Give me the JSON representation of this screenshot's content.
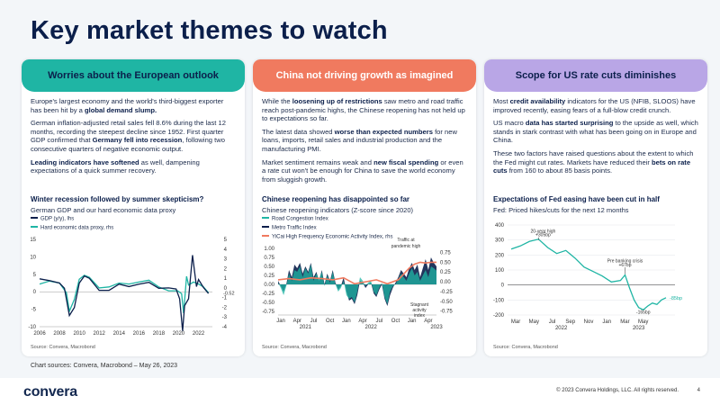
{
  "page_title": "Key market themes to watch",
  "colors": {
    "teal": "#1fb5a4",
    "coral": "#f07a5f",
    "lavender": "#b9a6e6",
    "navy": "#0b1f4b"
  },
  "cards": [
    {
      "header": "Worries about the European outlook",
      "paras": [
        [
          {
            "t": "Europe's largest economy and the world's third-biggest exporter has been hit by a "
          },
          {
            "t": "global demand slump.",
            "b": true
          }
        ],
        [
          {
            "t": "German inflation-adjusted retail sales fell 8.6% during the last 12 months, recording the steepest decline since 1952. First quarter GDP confirmed that "
          },
          {
            "t": "Germany fell into recession",
            "b": true
          },
          {
            "t": ", following two consecutive quarters of negative economic output."
          }
        ],
        [
          {
            "t": "Leading indicators have softened",
            "b": true
          },
          {
            "t": " as well, dampening expectations of a quick summer recovery."
          }
        ]
      ],
      "chart_title": "Winter recession followed by summer skepticism?",
      "chart_subtitle": "German GDP and our hard economic data proxy",
      "source": "Source: Convera, Macrobond"
    },
    {
      "header": "China not driving growth as imagined",
      "paras": [
        [
          {
            "t": "While the "
          },
          {
            "t": "loosening up of restrictions",
            "b": true
          },
          {
            "t": " saw metro and road traffic reach post-pandemic highs, the Chinese reopening has not held up to expectations so far."
          }
        ],
        [
          {
            "t": "The latest data showed "
          },
          {
            "t": "worse than expected numbers",
            "b": true
          },
          {
            "t": " for new loans, imports, retail sales and industrial production and the manufacturing PMI."
          }
        ],
        [
          {
            "t": "Market sentiment remains weak and "
          },
          {
            "t": "new fiscal spending",
            "b": true
          },
          {
            "t": " or even a rate cut won't be enough for China to save the world economy from sluggish growth."
          }
        ]
      ],
      "chart_title": "Chinese reopening has disappointed so far",
      "chart_subtitle": "Chinese reopening indicators (Z-score since 2020)",
      "source": "Source: Convera, Macrobond"
    },
    {
      "header": "Scope for US rate cuts diminishes",
      "paras": [
        [
          {
            "t": "Most "
          },
          {
            "t": "credit availability",
            "b": true
          },
          {
            "t": " indicators for the US (NFIB, SLOOS) have improved recently, easing fears of a full-blow credit crunch."
          }
        ],
        [
          {
            "t": "US macro "
          },
          {
            "t": "data has started surprising",
            "b": true
          },
          {
            "t": " to the upside as well, which stands in stark contrast with what has been going on in Europe and China."
          }
        ],
        [
          {
            "t": "These two factors have raised questions about the extent to which the Fed might cut rates. Markets have reduced their "
          },
          {
            "t": "bets on rate cuts",
            "b": true
          },
          {
            "t": " from 160 to about 85 basis points."
          }
        ]
      ],
      "chart_title": "Expectations of Fed easing have been cut in half",
      "chart_subtitle": "Fed: Priced hikes/cuts for the next 12 months",
      "source": "Source: Convera, Macrobond"
    }
  ],
  "footer": {
    "sources": "Chart sources: Convera, Macrobond – May 26, 2023",
    "logo": "convera",
    "copyright": "© 2023 Convera Holdings, LLC. All rights reserved.",
    "page": "4"
  },
  "chart_data": [
    {
      "type": "line",
      "title": "Winter recession followed by summer skepticism?",
      "subtitle": "German GDP and our hard economic data proxy",
      "legend": [
        "GDP (y/y), lhs",
        "Hard economic data proxy, rhs"
      ],
      "x_ticks": [
        "2006",
        "2008",
        "2010",
        "2012",
        "2014",
        "2016",
        "2018",
        "2020",
        "2022"
      ],
      "y_left": {
        "ticks": [
          15,
          10,
          5,
          0,
          -5,
          -10
        ],
        "ylim": [
          -10,
          15
        ]
      },
      "y_right": {
        "ticks": [
          5,
          4,
          3,
          2,
          1,
          0,
          -1,
          -2,
          -3,
          -4
        ],
        "ylim": [
          -4,
          5
        ]
      },
      "end_label": "-0.52",
      "series": [
        {
          "name": "GDP (y/y), lhs",
          "color": "#0b1f4b",
          "x": [
            2006,
            2007,
            2008,
            2008.5,
            2009,
            2009.5,
            2010,
            2010.5,
            2011,
            2012,
            2013,
            2014,
            2015,
            2016,
            2017,
            2018,
            2019,
            2019.75,
            2020.1,
            2020.4,
            2020.6,
            2021,
            2021.4,
            2021.8,
            2022,
            2022.5,
            2023
          ],
          "y": [
            3.7,
            3.2,
            2.5,
            1.0,
            -6.8,
            -4.5,
            2.5,
            4.5,
            3.9,
            0.4,
            0.4,
            2.2,
            1.5,
            2.2,
            2.7,
            1.0,
            1.1,
            0.8,
            -2.0,
            -11.2,
            -4.0,
            -2.0,
            10.5,
            1.5,
            3.5,
            1.2,
            -0.5
          ]
        },
        {
          "name": "Hard economic data proxy, rhs",
          "color": "#1fb5a4",
          "x": [
            2006,
            2007,
            2008,
            2008.7,
            2009,
            2009.5,
            2010,
            2010.5,
            2011,
            2012,
            2013,
            2014,
            2015,
            2016,
            2017,
            2018,
            2019,
            2019.9,
            2020.3,
            2020.5,
            2020.8,
            2021,
            2021.5,
            2022,
            2022.5,
            2023
          ],
          "y": [
            0.4,
            0.7,
            0.5,
            -0.5,
            -2.4,
            -1.2,
            0.9,
            1.3,
            1.1,
            0.0,
            0.1,
            0.5,
            0.4,
            0.6,
            0.8,
            0.1,
            -0.3,
            -0.3,
            -0.6,
            -2.6,
            1.2,
            0.3,
            0.6,
            0.4,
            0.1,
            -0.5
          ]
        }
      ]
    },
    {
      "type": "line",
      "title": "Chinese reopening has disappointed so far",
      "subtitle": "Chinese reopening indicators (Z-score since 2020)",
      "legend": [
        "Road Congestion Index",
        "Metro Traffic Index",
        "YiCai High Frequency Economic Activity Index, rhs"
      ],
      "x_ticks": [
        "Jan",
        "Apr",
        "Jul",
        "Oct",
        "Jan",
        "Apr",
        "Jul",
        "Oct",
        "Jan",
        "Apr"
      ],
      "x_years": [
        "2021",
        "2022",
        "2023"
      ],
      "y_left": {
        "ticks": [
          1.0,
          0.75,
          0.5,
          0.25,
          0.0,
          -0.25,
          -0.5,
          -0.75
        ],
        "ylim": [
          -0.85,
          1.05
        ]
      },
      "y_right": {
        "ticks": [
          0.75,
          0.5,
          0.25,
          0.0,
          -0.25,
          -0.5,
          -0.75
        ],
        "ylim": [
          -0.85,
          0.9
        ]
      },
      "annotations": [
        "Traffic at pandemic high",
        "Stagnant activity index"
      ],
      "series": [
        {
          "name": "Road Congestion Index",
          "color": "#1fb5a4",
          "x": [
            0,
            0.5,
            1,
            1.5,
            2,
            2.5,
            3,
            3.5,
            4,
            4.5,
            5,
            5.5,
            6,
            6.5,
            7,
            7.5,
            8,
            8.5,
            9,
            9.5,
            10,
            10.5,
            11,
            11.5,
            12,
            12.5,
            13,
            13.5,
            14,
            14.5,
            15,
            15.5,
            16,
            16.5,
            17,
            17.5,
            18,
            18.5,
            19,
            19.5,
            20,
            20.5,
            21,
            21.5,
            22,
            22.5,
            23,
            23.5,
            24,
            24.5,
            25,
            25.5,
            26,
            26.5,
            27,
            27.5,
            28,
            28.5,
            29
          ],
          "y": [
            0.05,
            -0.1,
            -0.3,
            -0.05,
            0.3,
            0.1,
            0.4,
            0.35,
            0.5,
            0.2,
            0.45,
            0.3,
            0.55,
            0.1,
            0.3,
            0.15,
            0.35,
            -0.05,
            0.25,
            0.05,
            0.35,
            0.0,
            -0.2,
            -0.1,
            0.1,
            -0.3,
            -0.4,
            -0.35,
            -0.5,
            -0.2,
            0.2,
            0.1,
            -0.05,
            0.05,
            0.1,
            -0.2,
            -0.3,
            -0.1,
            0.05,
            -0.35,
            -0.55,
            -0.2,
            -0.05,
            0.0,
            0.15,
            0.3,
            0.2,
            0.1,
            0.3,
            0.45,
            0.25,
            0.35,
            0.1,
            0.25,
            0.4,
            0.2,
            0.5,
            0.45,
            0.38
          ]
        },
        {
          "name": "Metro Traffic Index",
          "color": "#0b1f4b",
          "x": [
            0,
            0.5,
            1,
            1.5,
            2,
            2.5,
            3,
            3.5,
            4,
            4.5,
            5,
            5.5,
            6,
            6.5,
            7,
            7.5,
            8,
            8.5,
            9,
            9.5,
            10,
            10.5,
            11,
            11.5,
            12,
            12.5,
            13,
            13.5,
            14,
            14.5,
            15,
            15.5,
            16,
            16.5,
            17,
            17.5,
            18,
            18.5,
            19,
            19.5,
            20,
            20.5,
            21,
            21.5,
            22,
            22.5,
            23,
            23.5,
            24,
            24.5,
            25,
            25.5,
            26,
            26.5,
            27,
            27.5,
            28,
            28.5,
            29
          ],
          "y": [
            0.1,
            -0.05,
            -0.2,
            0.0,
            0.4,
            0.2,
            0.55,
            0.45,
            0.6,
            0.3,
            0.5,
            0.35,
            0.6,
            0.2,
            0.35,
            0.1,
            0.4,
            0.0,
            0.3,
            0.1,
            0.4,
            0.05,
            -0.15,
            -0.05,
            0.2,
            -0.2,
            -0.45,
            -0.4,
            -0.55,
            -0.3,
            0.1,
            0.05,
            -0.1,
            0.0,
            0.05,
            -0.25,
            -0.35,
            -0.15,
            0.0,
            -0.4,
            -0.6,
            -0.3,
            -0.1,
            0.05,
            0.2,
            0.4,
            0.3,
            0.2,
            0.45,
            0.6,
            0.4,
            0.55,
            0.2,
            0.45,
            0.7,
            0.4,
            0.75,
            0.6,
            0.5
          ]
        },
        {
          "name": "YiCai High Frequency Economic Activity Index, rhs",
          "color": "#f07a5f",
          "x": [
            0,
            2,
            4,
            6,
            8,
            10,
            12,
            14,
            16,
            18,
            20,
            22,
            23,
            24,
            25,
            26,
            27,
            28,
            29
          ],
          "y": [
            0.05,
            0.08,
            0.05,
            0.1,
            0.08,
            0.05,
            0.1,
            -0.05,
            0.0,
            0.05,
            -0.05,
            0.05,
            0.2,
            0.35,
            0.45,
            0.5,
            0.48,
            0.5,
            0.5
          ]
        }
      ]
    },
    {
      "type": "line",
      "title": "Expectations of Fed easing have been cut in half",
      "subtitle": "Fed: Priced hikes/cuts for the next 12 months",
      "x_ticks": [
        "Mar",
        "May",
        "Jul",
        "Sep",
        "Nov",
        "Jan",
        "Mar",
        "May"
      ],
      "x_years": [
        "2022",
        "2023"
      ],
      "y": {
        "ticks": [
          400,
          300,
          200,
          100,
          0,
          -100,
          -200
        ],
        "ylim": [
          -200,
          400
        ]
      },
      "annotations": [
        "20-year high +305bp",
        "Pre banking crisis +67bp",
        "-165bp",
        "-85bp"
      ],
      "series": [
        {
          "name": "",
          "color": "#1fb5a4",
          "x": [
            0,
            1,
            2,
            3,
            4,
            5,
            6,
            7,
            8,
            9,
            10,
            11,
            12,
            12.5,
            13,
            13.5,
            14,
            14.5,
            15,
            15.5,
            16,
            16.5,
            17
          ],
          "y": [
            240,
            260,
            290,
            305,
            250,
            210,
            230,
            180,
            120,
            90,
            60,
            20,
            30,
            67,
            -20,
            -100,
            -150,
            -165,
            -140,
            -120,
            -130,
            -100,
            -85
          ]
        }
      ]
    }
  ]
}
